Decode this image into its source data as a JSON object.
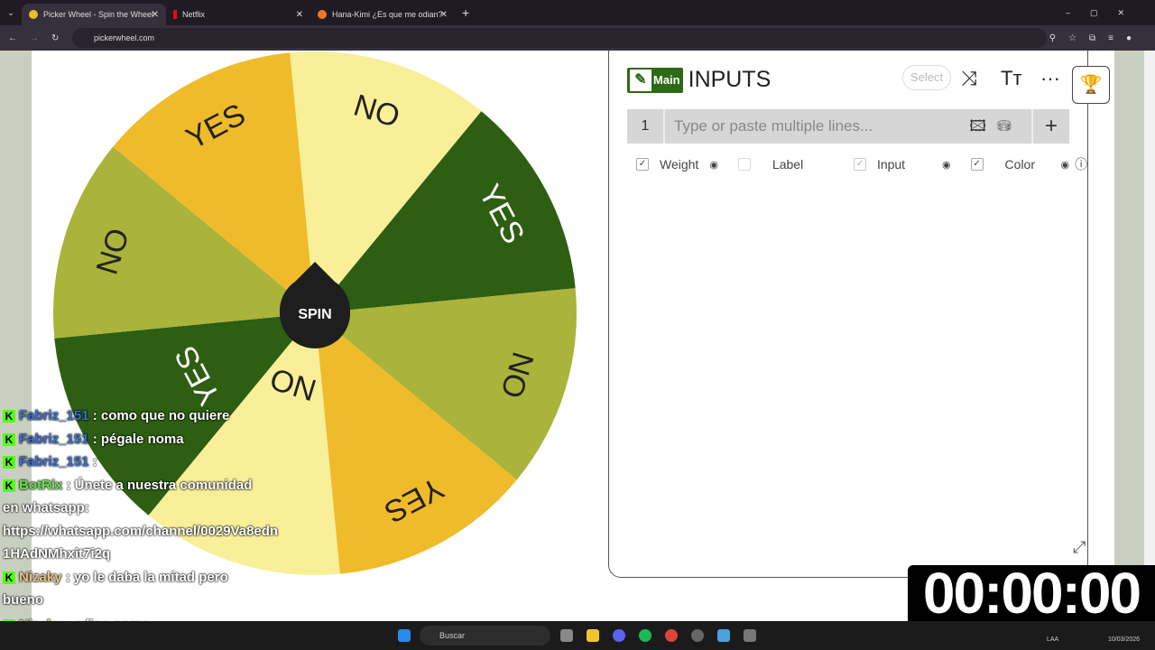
{
  "browser": {
    "tabs": [
      {
        "title": "Picker Wheel - Spin the Wheel"
      },
      {
        "title": "Netflix"
      },
      {
        "title": "Hana-Kimi ¿Es que me odian?"
      }
    ],
    "url": "pickerwheel.com"
  },
  "wheel": {
    "spin_label": "SPIN",
    "segments": [
      {
        "label": "NO",
        "color": "#f8ef98"
      },
      {
        "label": "YES",
        "color": "#2d5e12"
      },
      {
        "label": "NO",
        "color": "#aab33a"
      },
      {
        "label": "YES",
        "color": "#f0bb2a"
      },
      {
        "label": "NO",
        "color": "#f8ef98"
      },
      {
        "label": "YES",
        "color": "#2d5e12"
      },
      {
        "label": "NO",
        "color": "#aab33a"
      },
      {
        "label": "YES",
        "color": "#f0bb2a"
      }
    ]
  },
  "inputs": {
    "badge": "Main",
    "title": "INPUTS",
    "select": "Select",
    "row_number": "1",
    "placeholder": "Type or paste multiple lines...",
    "options": [
      {
        "label": "Weight",
        "checked": true
      },
      {
        "label": "Label",
        "checked": false
      },
      {
        "label": "Input",
        "checked": true
      },
      {
        "label": "Color",
        "checked": true
      }
    ]
  },
  "chat": [
    {
      "user": "Fabriz_151",
      "color": "#3a6fd0",
      "text": ": como que no quiere"
    },
    {
      "user": "Fabriz_151",
      "color": "#3a6fd0",
      "text": ": pégale noma"
    },
    {
      "user": "Fabriz_151",
      "color": "#3a6fd0",
      "text": ": "
    },
    {
      "user": "BotRix",
      "color": "#6be04a",
      "text": ": Únete a nuestra comunidad"
    },
    {
      "user": "",
      "color": "#fff",
      "text": "en whatsapp:"
    },
    {
      "user": "",
      "color": "#fff",
      "text": "https://whatsapp.com/channel/0029Va8edn"
    },
    {
      "user": "",
      "color": "#fff",
      "text": "1HAdNMhxit7i2q"
    },
    {
      "user": "Nizaky",
      "color": "#e8c27a",
      "text": ": yo le daba la mitad pero"
    },
    {
      "user": "",
      "color": "#fff",
      "text": "bueno"
    },
    {
      "user": "Nizaky",
      "color": "#e8c27a",
      "text": ": adios noma"
    }
  ],
  "taskbar": {
    "search": "Buscar",
    "lang": "LAA",
    "date": "10/03/2026"
  },
  "timer": "00:00:00"
}
